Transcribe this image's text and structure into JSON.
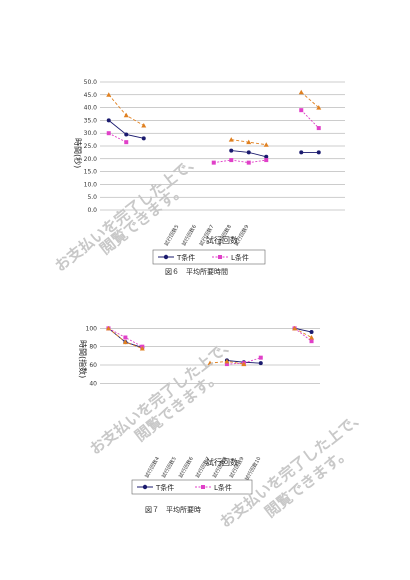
{
  "chart_data": [
    {
      "type": "line",
      "ylabel": "時間(秒)",
      "xlabel": "試行回数",
      "ylim": [
        0,
        50
      ],
      "yticks": [
        "0.0",
        "5.0",
        "10.0",
        "15.0",
        "20.0",
        "25.0",
        "30.0",
        "35.0",
        "40.0",
        "45.0",
        "50.0"
      ],
      "categories": [
        "試行回数1",
        "試行回数2",
        "試行回数3",
        "試行回数4",
        "試行回数5",
        "試行回数6",
        "試行回数7",
        "試行回数8",
        "試行回数9",
        "試行回数10",
        "試行回数11",
        "試行回数12",
        "試行回数13",
        "試行回数14"
      ],
      "visible_category_labels": [
        "試行回数5",
        "試行回数6",
        "試行回数7",
        "試行回数8",
        "試行回数9"
      ],
      "series": [
        {
          "name": "T条件",
          "color": "#1a1a6e",
          "marker": "circle",
          "values": [
            35.0,
            29.5,
            28.0,
            null,
            null,
            null,
            null,
            23.2,
            22.5,
            20.8,
            null,
            22.5,
            22.5,
            null
          ]
        },
        {
          "name": "L条件",
          "color": "#e040c8",
          "marker": "square",
          "values": [
            30.0,
            26.5,
            null,
            null,
            null,
            null,
            18.5,
            19.5,
            18.5,
            19.5,
            null,
            39.0,
            32.0,
            null
          ]
        },
        {
          "name": "",
          "color": "#e08020",
          "marker": "triangle",
          "values": [
            45.0,
            37.0,
            33.0,
            null,
            null,
            null,
            null,
            27.5,
            26.5,
            25.5,
            null,
            46.0,
            40.0,
            null
          ]
        }
      ],
      "legend": [
        "T条件",
        "L条件"
      ],
      "legend_position": "bottom",
      "caption": "図６　平均所要時間"
    },
    {
      "type": "line",
      "ylabel": "時間(指数)",
      "xlabel": "試行回数",
      "ylim": [
        0,
        120
      ],
      "yticks": [
        "40",
        "60",
        "80",
        "100"
      ],
      "categories": [
        "試行回数1",
        "試行回数2",
        "試行回数3",
        "試行回数4",
        "試行回数5",
        "試行回数6",
        "試行回数7",
        "試行回数8",
        "試行回数9",
        "試行回数10",
        "試行回数11",
        "試行回数12",
        "試行回数13"
      ],
      "visible_category_labels": [
        "試行回数4",
        "試行回数5",
        "試行回数6",
        "試行回数7",
        "試行回数8",
        "試行回数9",
        "試行回数10"
      ],
      "series": [
        {
          "name": "T条件",
          "color": "#1a1a6e",
          "marker": "circle",
          "values": [
            100,
            85,
            79,
            null,
            null,
            null,
            null,
            65,
            63,
            62,
            null,
            100,
            96
          ]
        },
        {
          "name": "L条件",
          "color": "#e040c8",
          "marker": "square",
          "values": [
            100,
            90,
            80,
            null,
            null,
            null,
            null,
            61,
            62,
            68,
            null,
            100,
            86
          ]
        },
        {
          "name": "",
          "color": "#e08020",
          "marker": "triangle",
          "values": [
            100,
            85,
            78,
            null,
            null,
            null,
            62,
            64,
            61,
            null,
            null,
            100,
            90
          ]
        }
      ],
      "legend": [
        "T条件",
        "L条件"
      ],
      "legend_position": "bottom",
      "caption": "図７　平均所要時"
    }
  ],
  "watermark": [
    "お支払いを完了した上で、",
    "閲覧できます。"
  ]
}
